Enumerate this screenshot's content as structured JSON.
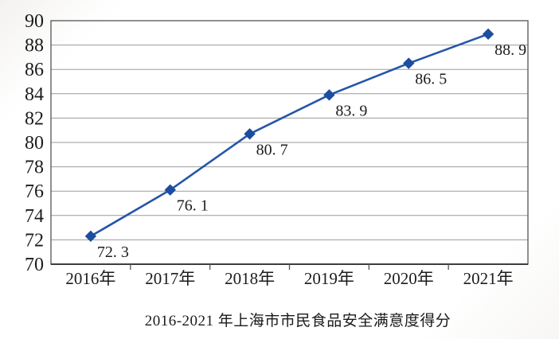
{
  "figure": {
    "title": "2016-2021 年上海市市民食品安全满意度得分"
  },
  "chart_data": {
    "type": "line",
    "title": "2016-2021 年上海市市民食品安全满意度得分",
    "categories": [
      "2016年",
      "2017年",
      "2018年",
      "2019年",
      "2020年",
      "2021年"
    ],
    "series": [
      {
        "name": "满意度得分",
        "values": [
          72.3,
          76.1,
          80.7,
          83.9,
          86.5,
          88.9
        ]
      }
    ],
    "point_labels": [
      "72. 3",
      "76. 1",
      "80. 7",
      "83. 9",
      "86. 5",
      "88. 9"
    ],
    "xlabel": "",
    "ylabel": "",
    "ylim": [
      70,
      90
    ],
    "ytick_step": 2,
    "ytick_labels": [
      "90",
      "88",
      "86",
      "84",
      "82",
      "80",
      "78",
      "76",
      "74",
      "72",
      "70"
    ],
    "grid": true,
    "legend_position": "none",
    "marker": "diamond",
    "colors": {
      "line": "#2456a7",
      "marker": "#1d4d9e",
      "grid": "#9b9b9b",
      "border": "#555555",
      "axis": "#3e3e3e",
      "text": "#1c1c1c"
    }
  }
}
